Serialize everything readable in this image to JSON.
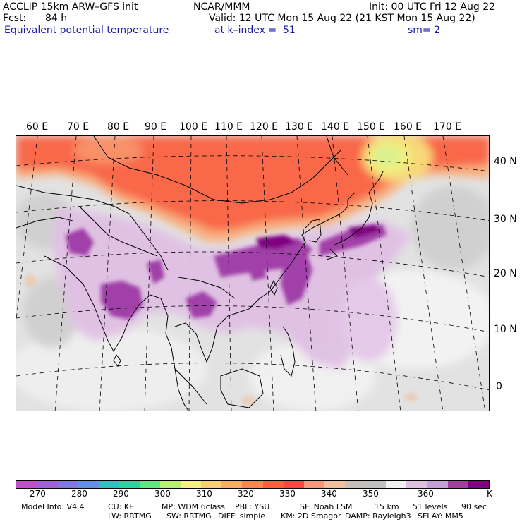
{
  "header": {
    "model": "ACCLIP 15km ARW–GFS init",
    "fcst_label": "Fcst:",
    "fcst_value": "84 h",
    "field": "Equivalent potential temperature",
    "center": "NCAR/MMM",
    "init": "Init: 00 UTC Fri 12 Aug 22",
    "valid": "Valid: 12 UTC Mon 15 Aug 22 (21 KST Mon 15 Aug 22)",
    "level": "at k–index =  51",
    "smooth": "sm= 2"
  },
  "map": {
    "lon_labels": [
      "60 E",
      "70 E",
      "80 E",
      "90 E",
      "100 E",
      "110 E",
      "120 E",
      "130 E",
      "140 E",
      "150 E",
      "160 E",
      "170 E"
    ],
    "lat_labels": [
      "40 N",
      "30 N",
      "20 N",
      "10 N",
      "0"
    ]
  },
  "colorbar": {
    "colors": [
      "#c050c8",
      "#a060d8",
      "#8078e0",
      "#6090e8",
      "#30c0c0",
      "#30d0a0",
      "#60e880",
      "#b8f070",
      "#f8f080",
      "#f8d070",
      "#f8b060",
      "#f88850",
      "#f86040",
      "#f84840",
      "#f89878",
      "#f0c0a0",
      "#c8c0b8",
      "#c0c0c0",
      "#f0f0f0",
      "#e0c0e0",
      "#c8a0d8",
      "#a040a0",
      "#800080"
    ],
    "labels": [
      "270",
      "280",
      "290",
      "300",
      "310",
      "320",
      "330",
      "340",
      "350",
      "360"
    ],
    "unit": "K"
  },
  "footer": {
    "line1": [
      "Model Info: V4.4",
      "CU: KF",
      "MP: WDM 6class",
      "PBL: YSU",
      "SF: Noah LSM",
      "15 km",
      "51 levels",
      "90 sec"
    ],
    "line2": [
      "LW: RRTMG",
      "SW: RRTMG",
      "DIFF: simple",
      "KM: 2D Smagor",
      "DAMP: Rayleigh3",
      "SFLAY: MM5"
    ]
  }
}
